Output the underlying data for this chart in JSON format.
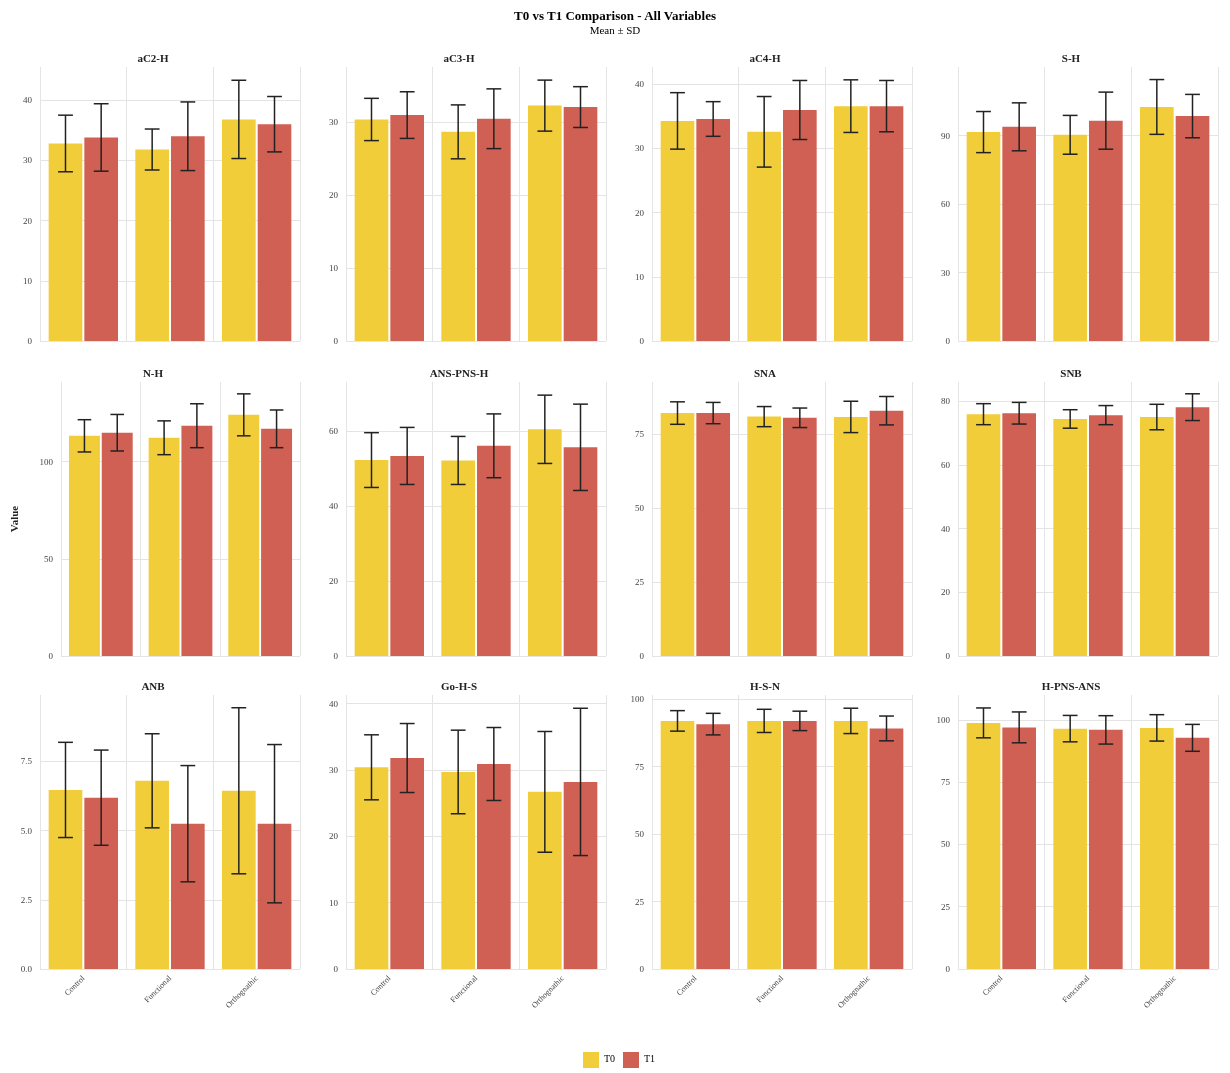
{
  "chart_data": [
    {
      "type": "bar",
      "title": "aC2-H",
      "annotations": [
        "T0 vs T1 Comparison - All Variables",
        "Mean ± SD"
      ],
      "legend": "bottom",
      "categories": [
        null,
        null,
        null
      ],
      "ylim": [
        0,
        45.5
      ],
      "yticks": [
        0,
        10,
        20,
        30,
        40
      ],
      "grid": true,
      "tick_labels": "y",
      "series": [
        {
          "name": "T0",
          "color": "#f2cd3a",
          "values": [
            32.8,
            31.8,
            36.8
          ],
          "errors": [
            4.7,
            3.4,
            6.5
          ]
        },
        {
          "name": "T1",
          "color": "#d06054",
          "values": [
            33.8,
            34.0,
            36.0
          ],
          "errors": [
            5.6,
            5.7,
            4.6
          ]
        }
      ]
    },
    {
      "type": "bar",
      "title": "aC3-H",
      "categories": [
        null,
        null,
        null
      ],
      "ylim": [
        0,
        37.6
      ],
      "yticks": [
        0,
        10,
        20,
        30
      ],
      "grid": true,
      "tick_labels": "y",
      "series": [
        {
          "color": "#f2cd3a",
          "values": [
            30.4,
            28.7,
            32.3
          ],
          "errors": [
            2.9,
            3.7,
            3.5
          ]
        },
        {
          "color": "#d06054",
          "values": [
            31.0,
            30.5,
            32.1
          ],
          "errors": [
            3.2,
            4.1,
            2.8
          ]
        }
      ]
    },
    {
      "type": "bar",
      "title": "aC4-H",
      "categories": [
        null,
        null,
        null
      ],
      "ylim": [
        0,
        42.7
      ],
      "yticks": [
        0,
        10,
        20,
        30,
        40
      ],
      "grid": true,
      "tick_labels": "y",
      "series": [
        {
          "color": "#f2cd3a",
          "values": [
            34.3,
            32.6,
            36.6
          ],
          "errors": [
            4.4,
            5.5,
            4.1
          ]
        },
        {
          "color": "#d06054",
          "values": [
            34.6,
            36.0,
            36.6
          ],
          "errors": [
            2.7,
            4.6,
            4.0
          ]
        }
      ]
    },
    {
      "type": "bar",
      "title": "S-H",
      "categories": [
        null,
        null,
        null
      ],
      "ylim": [
        0,
        120
      ],
      "yticks": [
        0,
        30,
        60,
        90
      ],
      "grid": true,
      "tick_labels": "y",
      "series": [
        {
          "color": "#f2cd3a",
          "values": [
            91.5,
            90.3,
            102.5
          ],
          "errors": [
            9,
            8.5,
            12
          ]
        },
        {
          "color": "#d06054",
          "values": [
            93.8,
            96.5,
            98.5
          ],
          "errors": [
            10.5,
            12.5,
            9.5
          ]
        }
      ]
    },
    {
      "type": "bar",
      "title": "N-H",
      "ylabel": "Value",
      "categories": [
        null,
        null,
        null
      ],
      "ylim": [
        0,
        141
      ],
      "yticks": [
        0,
        50,
        100
      ],
      "grid": true,
      "tick_labels": "y",
      "series": [
        {
          "color": "#f2cd3a",
          "values": [
            113.3,
            112.3,
            124.1
          ],
          "errors": [
            8.3,
            8.7,
            10.8
          ]
        },
        {
          "color": "#d06054",
          "values": [
            114.9,
            118.5,
            116.9
          ],
          "errors": [
            9.4,
            11.3,
            9.7
          ]
        }
      ]
    },
    {
      "type": "bar",
      "title": "ANS-PNS-H",
      "categories": [
        null,
        null,
        null
      ],
      "ylim": [
        0,
        73
      ],
      "yticks": [
        0,
        20,
        40,
        60
      ],
      "grid": true,
      "tick_labels": "y",
      "series": [
        {
          "color": "#f2cd3a",
          "values": [
            52.2,
            52.1,
            60.4
          ],
          "errors": [
            7.3,
            6.4,
            9.1
          ]
        },
        {
          "color": "#d06054",
          "values": [
            53.3,
            56.0,
            55.6
          ],
          "errors": [
            7.6,
            8.5,
            11.5
          ]
        }
      ]
    },
    {
      "type": "bar",
      "title": "SNA",
      "categories": [
        null,
        null,
        null
      ],
      "ylim": [
        0,
        92.6
      ],
      "yticks": [
        0,
        25,
        50,
        75
      ],
      "grid": true,
      "tick_labels": "y",
      "series": [
        {
          "color": "#f2cd3a",
          "values": [
            82.1,
            80.9,
            80.8
          ],
          "errors": [
            3.8,
            3.4,
            5.3
          ]
        },
        {
          "color": "#d06054",
          "values": [
            82.1,
            80.5,
            82.9
          ],
          "errors": [
            3.6,
            3.3,
            4.8
          ]
        }
      ]
    },
    {
      "type": "bar",
      "title": "SNB",
      "categories": [
        null,
        null,
        null
      ],
      "ylim": [
        0,
        86
      ],
      "yticks": [
        0,
        20,
        40,
        60,
        80
      ],
      "grid": true,
      "tick_labels": "y",
      "series": [
        {
          "color": "#f2cd3a",
          "values": [
            75.9,
            74.4,
            75.0
          ],
          "errors": [
            3.3,
            2.9,
            4.0
          ]
        },
        {
          "color": "#d06054",
          "values": [
            76.2,
            75.6,
            78.1
          ],
          "errors": [
            3.4,
            3.0,
            4.2
          ]
        }
      ]
    },
    {
      "type": "bar",
      "title": "ANB",
      "categories": [
        "Control",
        "Functional",
        "Orthognathic"
      ],
      "ylim": [
        0,
        9.9
      ],
      "yticks": [
        {
          "value": 0,
          "label": "0.0"
        },
        {
          "value": 2.5,
          "label": "2.5"
        },
        {
          "value": 5,
          "label": "5.0"
        },
        {
          "value": 7.5,
          "label": "7.5"
        }
      ],
      "grid": true,
      "series": [
        {
          "color": "#f2cd3a",
          "values": [
            6.47,
            6.8,
            6.44
          ],
          "errors": [
            1.72,
            1.7,
            3.0
          ]
        },
        {
          "color": "#d06054",
          "values": [
            6.19,
            5.25,
            5.25
          ],
          "errors": [
            1.72,
            2.1,
            2.86
          ]
        }
      ]
    },
    {
      "type": "bar",
      "title": "Go-H-S",
      "categories": [
        "Control",
        "Functional",
        "Orthognathic"
      ],
      "ylim": [
        0,
        41.3
      ],
      "yticks": [
        0,
        10,
        20,
        30,
        40
      ],
      "grid": true,
      "series": [
        {
          "color": "#f2cd3a",
          "values": [
            30.4,
            29.7,
            26.7
          ],
          "errors": [
            4.9,
            6.3,
            9.1
          ]
        },
        {
          "color": "#d06054",
          "values": [
            31.8,
            30.9,
            28.2
          ],
          "errors": [
            5.2,
            5.5,
            11.1
          ]
        }
      ]
    },
    {
      "type": "bar",
      "title": "H-S-N",
      "categories": [
        "Control",
        "Functional",
        "Orthognathic"
      ],
      "ylim": [
        0,
        101.6
      ],
      "yticks": [
        0,
        25,
        50,
        75,
        100
      ],
      "grid": true,
      "series": [
        {
          "color": "#f2cd3a",
          "values": [
            92.0,
            92.0,
            92.0
          ],
          "errors": [
            3.8,
            4.3,
            4.7
          ]
        },
        {
          "color": "#d06054",
          "values": [
            90.8,
            92.0,
            89.2
          ],
          "errors": [
            4.0,
            3.6,
            4.6
          ]
        }
      ]
    },
    {
      "type": "bar",
      "title": "H-PNS-ANS",
      "categories": [
        "Control",
        "Functional",
        "Orthognathic"
      ],
      "ylim": [
        0,
        110
      ],
      "yticks": [
        0,
        25,
        50,
        75,
        100
      ],
      "grid": true,
      "series": [
        {
          "color": "#f2cd3a",
          "values": [
            98.8,
            96.5,
            96.8
          ],
          "errors": [
            6.0,
            5.3,
            5.3
          ]
        },
        {
          "color": "#d06054",
          "values": [
            97.0,
            96.0,
            92.8
          ],
          "errors": [
            6.2,
            5.7,
            5.4
          ]
        }
      ]
    }
  ]
}
